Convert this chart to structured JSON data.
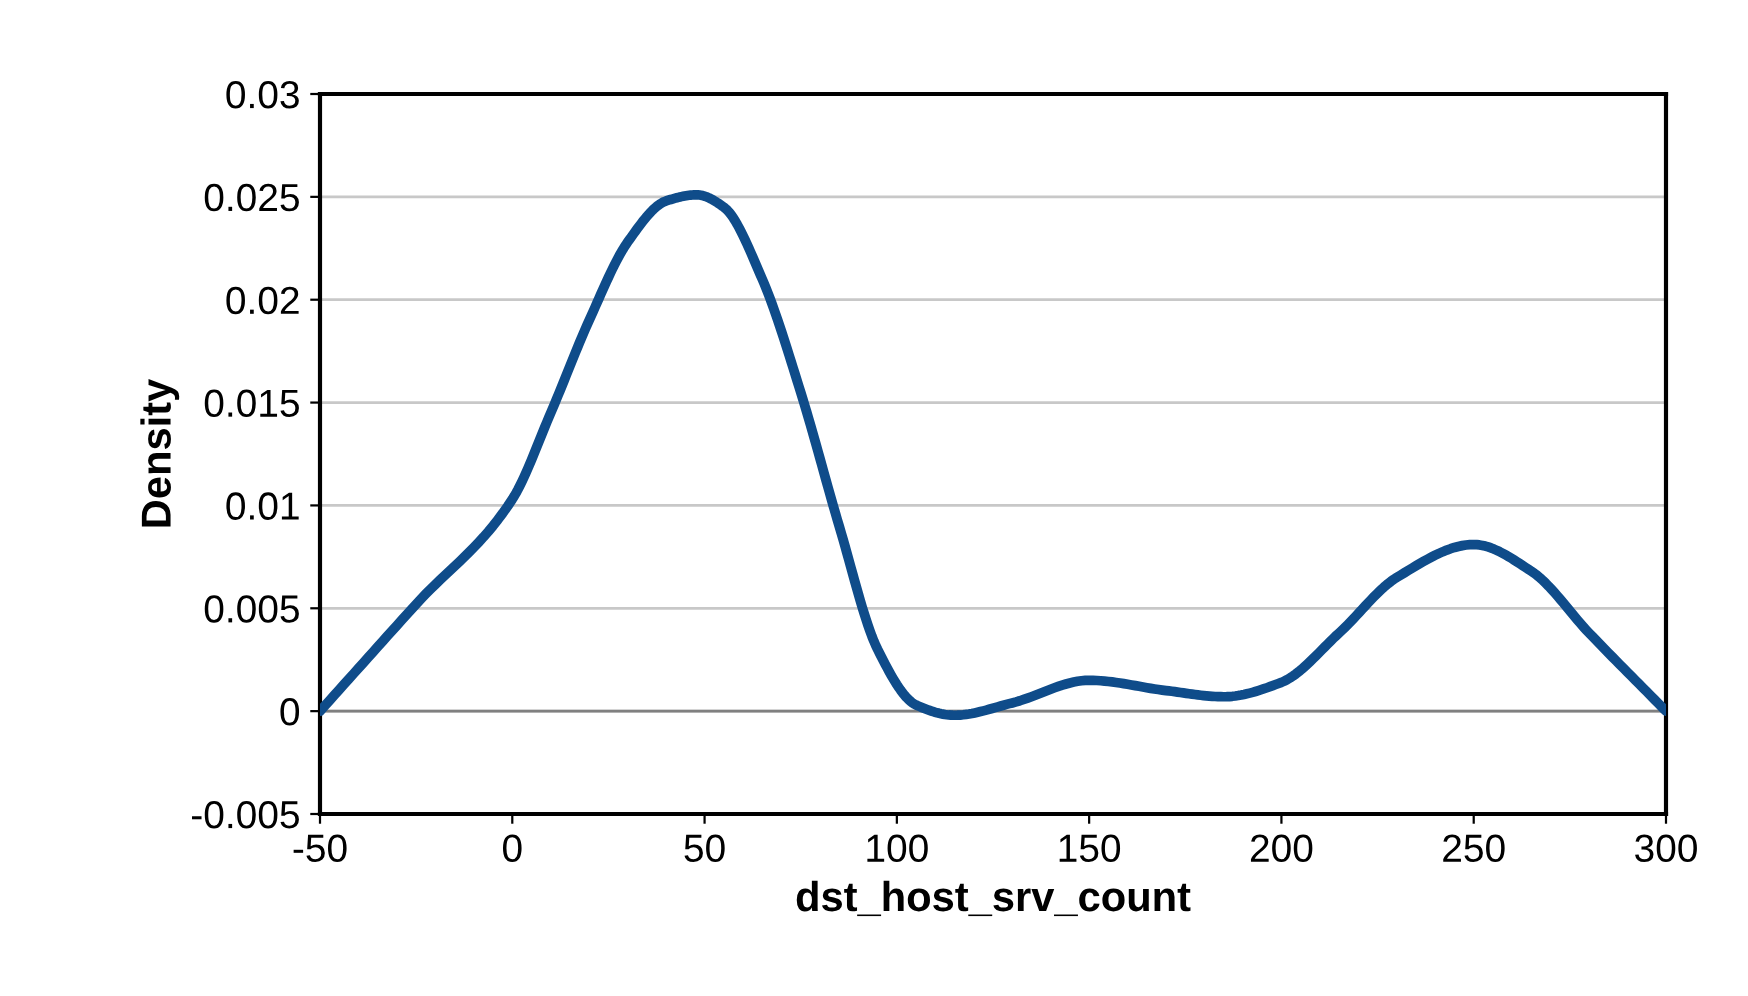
{
  "chart_data": {
    "type": "line",
    "xlabel": "dst_host_srv_count",
    "ylabel": "Density",
    "x": [
      -50,
      -25,
      0,
      10,
      20,
      30,
      40,
      48,
      55,
      65,
      75,
      85,
      95,
      105,
      115,
      130,
      150,
      170,
      185,
      200,
      215,
      230,
      250,
      265,
      280,
      300
    ],
    "series": [
      {
        "color": "#0f4c8a",
        "values": [
          0,
          0.0052,
          0.0103,
          0.0145,
          0.019,
          0.0228,
          0.0248,
          0.0251,
          0.0245,
          0.021,
          0.0155,
          0.009,
          0.003,
          0.0003,
          -0.0002,
          0.0004,
          0.0015,
          0.001,
          0.0007,
          0.0014,
          0.0038,
          0.0065,
          0.0081,
          0.0068,
          0.0038,
          0
        ]
      }
    ],
    "xlim": [
      -50,
      300
    ],
    "xticks": [
      -50,
      0,
      50,
      100,
      150,
      200,
      250,
      300
    ],
    "ylim": [
      -0.005,
      0.03
    ],
    "yticks": [
      -0.005,
      0,
      0.005,
      0.01,
      0.015,
      0.02,
      0.025,
      0.03
    ],
    "grid": "y",
    "marker": "none",
    "line_style": "solid"
  }
}
